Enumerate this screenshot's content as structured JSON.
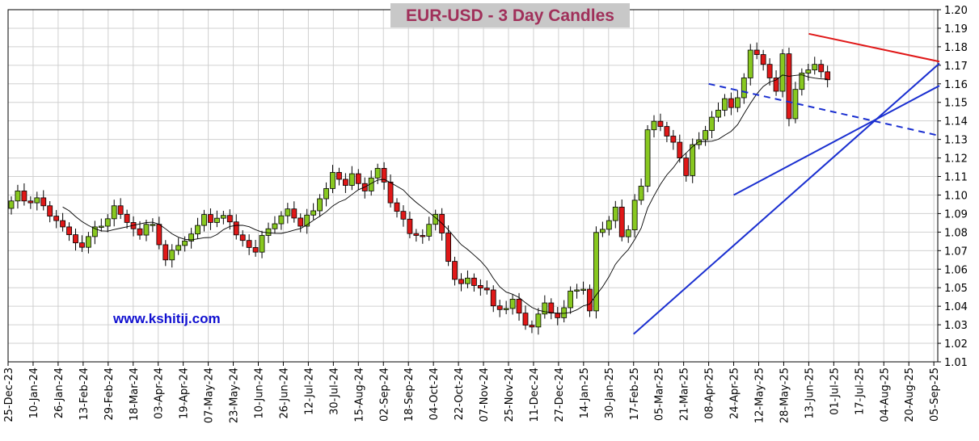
{
  "chart_data": {
    "type": "candlestick",
    "title": "EUR-USD - 3 Day Candles",
    "watermark": "www.kshitij.com",
    "ylim": [
      1.01,
      1.2
    ],
    "y_ticks": [
      "1.01",
      "1.02",
      "1.03",
      "1.04",
      "1.05",
      "1.06",
      "1.07",
      "1.08",
      "1.09",
      "1.10",
      "1.11",
      "1.12",
      "1.13",
      "1.14",
      "1.15",
      "1.16",
      "1.17",
      "1.18",
      "1.19",
      "1.20"
    ],
    "x_ticks": [
      "25-Dec-23",
      "10-Jan-24",
      "26-Jan-24",
      "13-Feb-24",
      "29-Feb-24",
      "18-Mar-24",
      "03-Apr-24",
      "19-Apr-24",
      "07-May-24",
      "23-May-24",
      "10-Jun-24",
      "26-Jun-24",
      "12-Jul-24",
      "30-Jul-24",
      "15-Aug-24",
      "02-Sep-24",
      "18-Sep-24",
      "04-Oct-24",
      "22-Oct-24",
      "07-Nov-24",
      "25-Nov-24",
      "11-Dec-24",
      "27-Dec-24",
      "14-Jan-25",
      "30-Jan-25",
      "17-Feb-25",
      "05-Mar-25",
      "21-Mar-25",
      "08-Apr-25",
      "24-Apr-25",
      "12-May-25",
      "28-May-25",
      "13-Jun-25",
      "01-Jul-25",
      "17-Jul-25",
      "04-Aug-25",
      "20-Aug-25",
      "05-Sep-25"
    ],
    "grid": true,
    "y_axis_position": "right",
    "colors": {
      "up": "#88c820",
      "down": "#e01818",
      "moving_average": "#000000",
      "resistance": "#e01818",
      "support": "#1a2fd0",
      "channel": "#1a2fd0"
    },
    "closes": [
      1.0968,
      1.1022,
      1.0968,
      1.0958,
      1.0985,
      1.0942,
      1.0886,
      1.0862,
      1.0828,
      1.0786,
      1.0742,
      1.0718,
      1.0776,
      1.0828,
      1.0832,
      1.0872,
      1.0942,
      1.0896,
      1.0852,
      1.0818,
      1.0784,
      1.0842,
      1.0842,
      1.0732,
      1.065,
      1.0702,
      1.0728,
      1.0752,
      1.079,
      1.0836,
      1.0895,
      1.0852,
      1.0875,
      1.089,
      1.0855,
      1.0785,
      1.0755,
      1.0717,
      1.0692,
      1.0782,
      1.0818,
      1.0845,
      1.0888,
      1.0925,
      1.0876,
      1.0832,
      1.0892,
      1.0915,
      1.098,
      1.1035,
      1.1122,
      1.1085,
      1.1052,
      1.1115,
      1.1062,
      1.1022,
      1.1092,
      1.1144,
      1.107,
      1.0958,
      1.0912,
      1.087,
      1.0792,
      1.0782,
      1.0778,
      1.0842,
      1.0896,
      1.0795,
      1.0642,
      1.0545,
      1.0522,
      1.0552,
      1.0512,
      1.0498,
      1.0488,
      1.0402,
      1.0382,
      1.0388,
      1.0438,
      1.0363,
      1.0298,
      1.0288,
      1.0358,
      1.0418,
      1.0363,
      1.0338,
      1.0392,
      1.0482,
      1.0488,
      1.0492,
      1.0375,
      1.0798,
      1.0815,
      1.0862,
      1.0935,
      1.0775,
      1.0812,
      1.0972,
      1.1048,
      1.1352,
      1.1398,
      1.137,
      1.1318,
      1.1285,
      1.12,
      1.1105,
      1.1272,
      1.1298,
      1.1348,
      1.142,
      1.1458,
      1.152,
      1.1472,
      1.1525,
      1.1632,
      1.1782,
      1.1758,
      1.1705,
      1.1632,
      1.156,
      1.1762,
      1.1412,
      1.157,
      1.1658,
      1.1675,
      1.1705,
      1.1665,
      1.1622
    ],
    "series": [
      {
        "name": ""
      }
    ],
    "trendlines": [
      {
        "kind": "resistance",
        "style": "solid",
        "from": [
          "13-Jun-25",
          1.187
        ],
        "to": [
          "05-Sep-25",
          1.172
        ]
      },
      {
        "kind": "support",
        "style": "solid",
        "from": [
          "17-Feb-25",
          1.025
        ],
        "to": [
          "05-Sep-25",
          1.171
        ]
      },
      {
        "kind": "support",
        "style": "solid",
        "from": [
          "24-Apr-25",
          1.1
        ],
        "to": [
          "05-Sep-25",
          1.159
        ]
      },
      {
        "kind": "channel",
        "style": "dashed",
        "from": [
          "08-Apr-25",
          1.16
        ],
        "to": [
          "05-Sep-25",
          1.132
        ]
      }
    ]
  }
}
